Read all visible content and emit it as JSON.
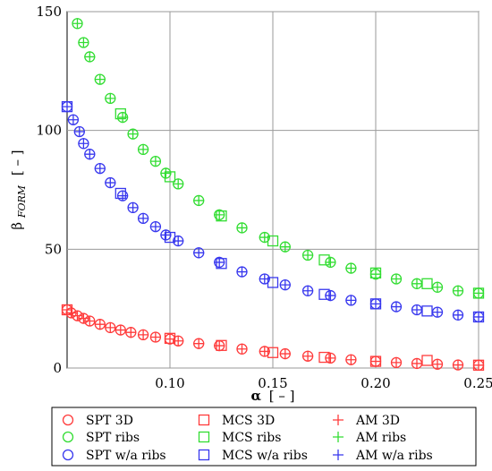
{
  "chart_data": {
    "type": "scatter",
    "xlabel": {
      "symbol": "α",
      "unit": "[ – ]"
    },
    "ylabel": {
      "symbol": "β",
      "subscript": "FORM",
      "unit": "[ – ]"
    },
    "xlim": [
      0.05,
      0.25
    ],
    "ylim": [
      0,
      150
    ],
    "x_ticks": [
      0.1,
      0.15,
      0.2,
      0.25
    ],
    "x_tick_labels": [
      "0.10",
      "0.15",
      "0.20",
      "0.25"
    ],
    "y_ticks": [
      0,
      50,
      100,
      150
    ],
    "y_tick_labels": [
      "0",
      "50",
      "100",
      "150"
    ],
    "grid": true,
    "legend_position": "bottom",
    "series": [
      {
        "name": "SPT 3D",
        "marker": "circle",
        "color": "#ff3b3b",
        "points": [
          [
            0.05,
            24.5
          ],
          [
            0.052,
            23.2
          ],
          [
            0.055,
            22.0
          ],
          [
            0.058,
            20.9
          ],
          [
            0.061,
            19.8
          ],
          [
            0.066,
            18.4
          ],
          [
            0.071,
            17.0
          ],
          [
            0.076,
            16.0
          ],
          [
            0.081,
            15.0
          ],
          [
            0.087,
            14.0
          ],
          [
            0.093,
            13.0
          ],
          [
            0.1,
            12.2
          ],
          [
            0.104,
            11.4
          ],
          [
            0.114,
            10.3
          ],
          [
            0.124,
            9.4
          ],
          [
            0.135,
            8.0
          ],
          [
            0.146,
            7.0
          ],
          [
            0.156,
            6.0
          ],
          [
            0.167,
            5.0
          ],
          [
            0.178,
            4.2
          ],
          [
            0.188,
            3.5
          ],
          [
            0.2,
            2.8
          ],
          [
            0.21,
            2.3
          ],
          [
            0.22,
            1.9
          ],
          [
            0.23,
            1.6
          ],
          [
            0.24,
            1.3
          ],
          [
            0.25,
            1.2
          ]
        ]
      },
      {
        "name": "MCS 3D",
        "marker": "square",
        "color": "#ff3b3b",
        "points": [
          [
            0.05,
            24.5
          ],
          [
            0.1,
            12.5
          ],
          [
            0.125,
            9.5
          ],
          [
            0.15,
            6.5
          ],
          [
            0.175,
            4.5
          ],
          [
            0.2,
            2.8
          ],
          [
            0.225,
            3.2
          ],
          [
            0.25,
            1.2
          ]
        ]
      },
      {
        "name": "AM 3D",
        "marker": "plus",
        "color": "#ff3b3b",
        "points": [
          [
            0.05,
            24.5
          ],
          [
            0.052,
            23.2
          ],
          [
            0.055,
            22.0
          ],
          [
            0.058,
            20.9
          ],
          [
            0.061,
            19.8
          ],
          [
            0.066,
            18.4
          ],
          [
            0.071,
            17.0
          ],
          [
            0.076,
            16.0
          ],
          [
            0.081,
            15.0
          ],
          [
            0.087,
            14.0
          ],
          [
            0.093,
            13.0
          ],
          [
            0.1,
            12.2
          ],
          [
            0.104,
            11.4
          ],
          [
            0.114,
            10.3
          ],
          [
            0.124,
            9.4
          ],
          [
            0.135,
            8.0
          ],
          [
            0.146,
            7.0
          ],
          [
            0.156,
            6.0
          ],
          [
            0.167,
            5.0
          ],
          [
            0.178,
            4.2
          ],
          [
            0.188,
            3.5
          ],
          [
            0.2,
            2.8
          ],
          [
            0.21,
            2.3
          ],
          [
            0.22,
            1.9
          ],
          [
            0.23,
            1.6
          ],
          [
            0.24,
            1.3
          ],
          [
            0.25,
            1.2
          ]
        ]
      },
      {
        "name": "SPT ribs",
        "marker": "circle",
        "color": "#33dd33",
        "points": [
          [
            0.055,
            145
          ],
          [
            0.058,
            137
          ],
          [
            0.061,
            131
          ],
          [
            0.066,
            121.5
          ],
          [
            0.071,
            113.5
          ],
          [
            0.077,
            105.5
          ],
          [
            0.082,
            98.5
          ],
          [
            0.087,
            92
          ],
          [
            0.093,
            87
          ],
          [
            0.098,
            82
          ],
          [
            0.104,
            77.5
          ],
          [
            0.114,
            70.5
          ],
          [
            0.124,
            64.5
          ],
          [
            0.135,
            59
          ],
          [
            0.146,
            55
          ],
          [
            0.156,
            51
          ],
          [
            0.167,
            47.5
          ],
          [
            0.178,
            44.5
          ],
          [
            0.188,
            42
          ],
          [
            0.2,
            39.5
          ],
          [
            0.21,
            37.5
          ],
          [
            0.22,
            35.5
          ],
          [
            0.23,
            34
          ],
          [
            0.24,
            32.5
          ],
          [
            0.25,
            31.5
          ]
        ]
      },
      {
        "name": "MCS ribs",
        "marker": "square",
        "color": "#33dd33",
        "points": [
          [
            0.076,
            107
          ],
          [
            0.1,
            80.5
          ],
          [
            0.125,
            64
          ],
          [
            0.15,
            53.5
          ],
          [
            0.175,
            45.5
          ],
          [
            0.2,
            40
          ],
          [
            0.225,
            35.5
          ],
          [
            0.25,
            31.5
          ]
        ]
      },
      {
        "name": "AM ribs",
        "marker": "plus",
        "color": "#33dd33",
        "points": [
          [
            0.055,
            145
          ],
          [
            0.058,
            137
          ],
          [
            0.061,
            131
          ],
          [
            0.066,
            121.5
          ],
          [
            0.071,
            113.5
          ],
          [
            0.077,
            105.5
          ],
          [
            0.082,
            98.5
          ],
          [
            0.087,
            92
          ],
          [
            0.093,
            87
          ],
          [
            0.098,
            82
          ],
          [
            0.104,
            77.5
          ],
          [
            0.114,
            70.5
          ],
          [
            0.124,
            64.5
          ],
          [
            0.135,
            59
          ],
          [
            0.146,
            55
          ],
          [
            0.156,
            51
          ],
          [
            0.167,
            47.5
          ],
          [
            0.178,
            44.5
          ],
          [
            0.188,
            42
          ],
          [
            0.2,
            39.5
          ],
          [
            0.21,
            37.5
          ],
          [
            0.22,
            35.5
          ],
          [
            0.23,
            34
          ],
          [
            0.24,
            32.5
          ],
          [
            0.25,
            31.5
          ]
        ]
      },
      {
        "name": "SPT w/a ribs",
        "marker": "circle",
        "color": "#3838ee",
        "points": [
          [
            0.05,
            110
          ],
          [
            0.053,
            104.5
          ],
          [
            0.056,
            99.5
          ],
          [
            0.058,
            94.5
          ],
          [
            0.061,
            90
          ],
          [
            0.066,
            84
          ],
          [
            0.071,
            78
          ],
          [
            0.077,
            72.5
          ],
          [
            0.082,
            67.5
          ],
          [
            0.087,
            63
          ],
          [
            0.093,
            59.5
          ],
          [
            0.098,
            56
          ],
          [
            0.104,
            53.5
          ],
          [
            0.114,
            48.5
          ],
          [
            0.124,
            44.5
          ],
          [
            0.135,
            40.5
          ],
          [
            0.146,
            37.5
          ],
          [
            0.156,
            35
          ],
          [
            0.167,
            32.5
          ],
          [
            0.178,
            30.5
          ],
          [
            0.188,
            28.5
          ],
          [
            0.2,
            27
          ],
          [
            0.21,
            25.8
          ],
          [
            0.22,
            24.5
          ],
          [
            0.23,
            23.5
          ],
          [
            0.24,
            22.3
          ],
          [
            0.25,
            21.5
          ]
        ]
      },
      {
        "name": "MCS w/a ribs",
        "marker": "square",
        "color": "#3838ee",
        "points": [
          [
            0.05,
            110
          ],
          [
            0.076,
            73.5
          ],
          [
            0.1,
            55
          ],
          [
            0.125,
            44
          ],
          [
            0.15,
            36
          ],
          [
            0.175,
            31
          ],
          [
            0.2,
            27
          ],
          [
            0.225,
            24
          ],
          [
            0.25,
            21.5
          ]
        ]
      },
      {
        "name": "AM w/a ribs",
        "marker": "plus",
        "color": "#3838ee",
        "points": [
          [
            0.05,
            110
          ],
          [
            0.053,
            104.5
          ],
          [
            0.056,
            99.5
          ],
          [
            0.058,
            94.5
          ],
          [
            0.061,
            90
          ],
          [
            0.066,
            84
          ],
          [
            0.071,
            78
          ],
          [
            0.077,
            72.5
          ],
          [
            0.082,
            67.5
          ],
          [
            0.087,
            63
          ],
          [
            0.093,
            59.5
          ],
          [
            0.098,
            56
          ],
          [
            0.104,
            53.5
          ],
          [
            0.114,
            48.5
          ],
          [
            0.124,
            44.5
          ],
          [
            0.135,
            40.5
          ],
          [
            0.146,
            37.5
          ],
          [
            0.156,
            35
          ],
          [
            0.167,
            32.5
          ],
          [
            0.178,
            30.5
          ],
          [
            0.188,
            28.5
          ],
          [
            0.2,
            27
          ],
          [
            0.21,
            25.8
          ],
          [
            0.22,
            24.5
          ],
          [
            0.23,
            23.5
          ],
          [
            0.24,
            22.3
          ],
          [
            0.25,
            21.5
          ]
        ]
      }
    ],
    "legend_layout": [
      [
        "SPT 3D",
        "MCS 3D",
        "AM 3D"
      ],
      [
        "SPT ribs",
        "MCS ribs",
        "AM ribs"
      ],
      [
        "SPT w/a ribs",
        "MCS w/a ribs",
        "AM w/a ribs"
      ]
    ]
  }
}
